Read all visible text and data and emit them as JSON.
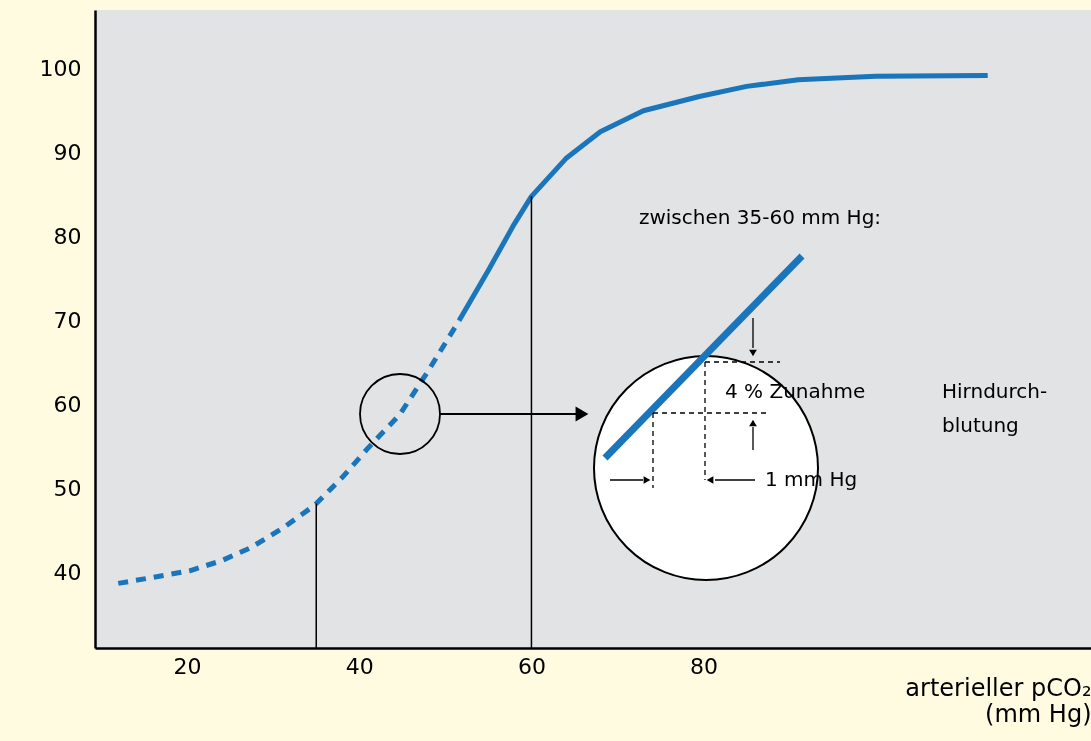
{
  "chart_data": {
    "type": "line",
    "xlabel": "arterieller pCO₂\n(mm Hg)",
    "xlim": [
      9.3,
      125
    ],
    "ylim": [
      31,
      107
    ],
    "xticks": [
      20,
      40,
      60,
      80
    ],
    "yticks": [
      40,
      50,
      60,
      70,
      80,
      90,
      100
    ],
    "grid": false,
    "series": [
      {
        "color": "#1a75bb",
        "line_style": "dashed",
        "x": [
          12,
          16,
          20.3,
          24,
          27.3,
          31,
          34.8,
          38,
          41,
          44.7,
          48,
          51.6
        ],
        "values": [
          38.7,
          39.4,
          40.2,
          41.4,
          42.9,
          45.2,
          48,
          51.3,
          54.8,
          58.8,
          64,
          70
        ]
      },
      {
        "color": "#1a75bb",
        "line_style": "solid",
        "x": [
          51.6,
          55,
          58,
          60,
          64,
          68,
          73,
          79.5,
          85,
          91,
          100,
          113
        ],
        "values": [
          70,
          76,
          81.5,
          84.8,
          89.3,
          92.5,
          95,
          96.7,
          97.9,
          98.7,
          99.1,
          99.2
        ]
      }
    ],
    "ref_lines": [
      {
        "axis": "x",
        "value": 35,
        "color": "#000000"
      },
      {
        "axis": "x",
        "value": 60,
        "color": "#000000"
      }
    ],
    "annotations": [
      "zwischen 35-60 mm Hg:",
      "4 % Zunahme",
      "Hirndurch-\nblutung",
      "1 mm Hg"
    ]
  }
}
